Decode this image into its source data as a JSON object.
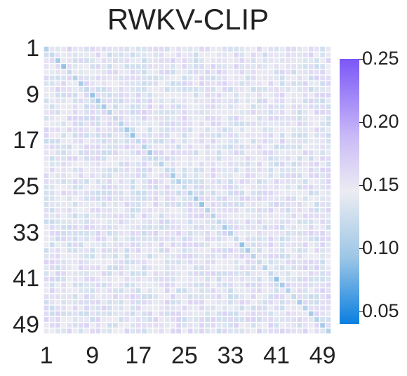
{
  "chart_data": {
    "type": "heatmap",
    "title": "RWKV-CLIP",
    "rows": 50,
    "cols": 50,
    "tick_labels": [
      "1",
      "9",
      "17",
      "25",
      "33",
      "41",
      "49"
    ],
    "tick_values": [
      1,
      9,
      17,
      25,
      33,
      41,
      49
    ],
    "diagonal_values": [
      0.11,
      0.12,
      0.1,
      0.09,
      0.12,
      0.11,
      0.1,
      0.12,
      0.09,
      0.1,
      0.1,
      0.11,
      0.12,
      0.11,
      0.1,
      0.09,
      0.12,
      0.11,
      0.1,
      0.12,
      0.11,
      0.12,
      0.1,
      0.11,
      0.12,
      0.11,
      0.1,
      0.09,
      0.11,
      0.11,
      0.12,
      0.1,
      0.11,
      0.12,
      0.09,
      0.1,
      0.11,
      0.12,
      0.11,
      0.12,
      0.09,
      0.1,
      0.11,
      0.12,
      0.1,
      0.11,
      0.1,
      0.11,
      0.1,
      0.11
    ],
    "off_diagonal_typical": 0.145,
    "colorbar": {
      "min": 0.04,
      "max": 0.25,
      "ticks": [
        "0.05",
        "0.10",
        "0.15",
        "0.20",
        "0.25"
      ],
      "tick_values": [
        0.05,
        0.1,
        0.15,
        0.2,
        0.25
      ],
      "colors": {
        "low": "#0a7fe0",
        "mid": "#ececf2",
        "high": "#7b57f7"
      }
    },
    "grid_line_color": "#ffffff"
  }
}
